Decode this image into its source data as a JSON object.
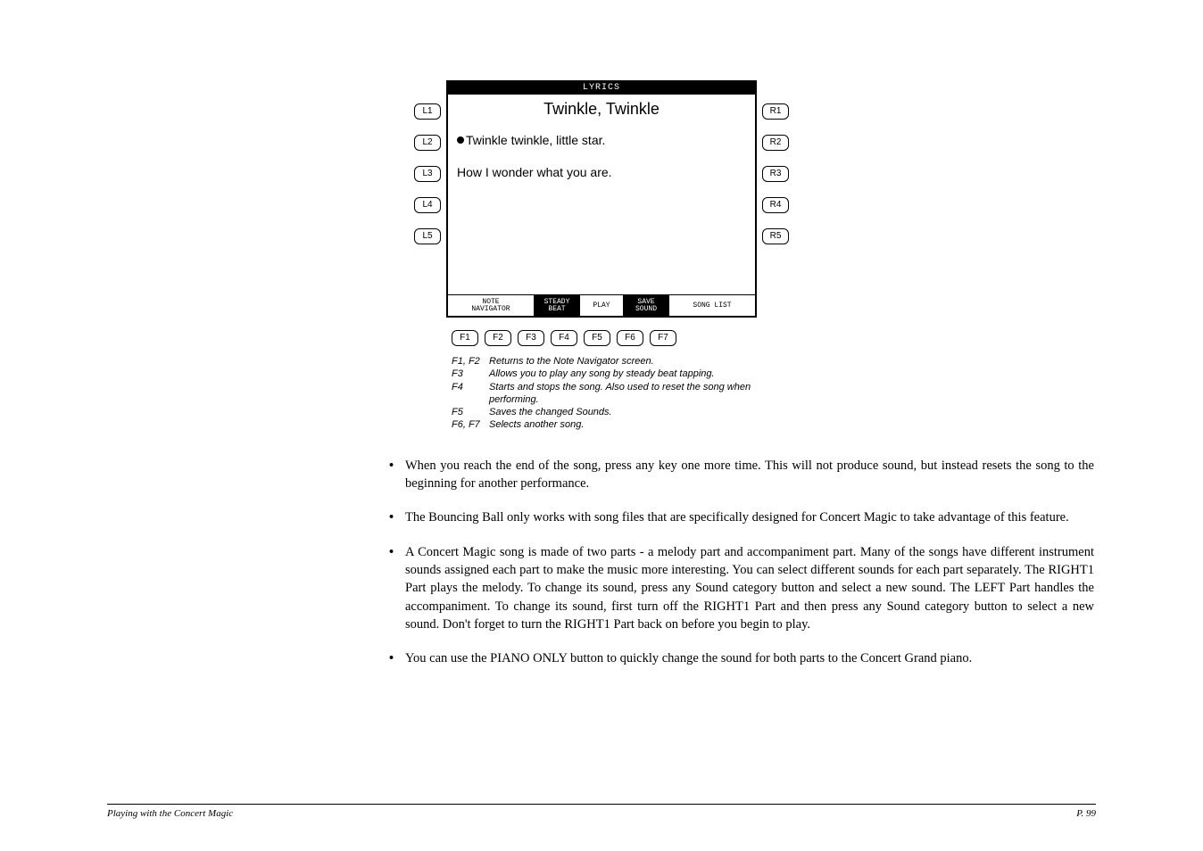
{
  "lcd": {
    "title_bar": "LYRICS",
    "song_title": "Twinkle, Twinkle",
    "line1": "Twinkle twinkle, little star.",
    "line2": "How I wonder what you are.",
    "tabs": {
      "t1": "NOTE\nNAVIGATOR",
      "t2": "STEADY\nBEAT",
      "t3": "PLAY",
      "t4": "SAVE\nSOUND",
      "t5": "SONG LIST"
    }
  },
  "left_buttons": [
    "L1",
    "L2",
    "L3",
    "L4",
    "L5"
  ],
  "right_buttons": [
    "R1",
    "R2",
    "R3",
    "R4",
    "R5"
  ],
  "f_buttons": [
    "F1",
    "F2",
    "F3",
    "F4",
    "F5",
    "F6",
    "F7"
  ],
  "legend": [
    {
      "key": "F1, F2",
      "val": "Returns to the Note Navigator screen."
    },
    {
      "key": "F3",
      "val": "Allows you to play any song by steady beat tapping."
    },
    {
      "key": "F4",
      "val": "Starts and stops the song.  Also used to reset the song when performing."
    },
    {
      "key": "F5",
      "val": "Saves the changed Sounds."
    },
    {
      "key": "F6, F7",
      "val": "Selects another song."
    }
  ],
  "bullets": [
    "When you reach the end of the song, press any key one more time.  This will not produce sound, but instead resets the song to the beginning for another performance.",
    "The Bouncing Ball only works with song files that are specifically designed for Concert Magic to take advantage of this feature.",
    "A Concert Magic song is made of two parts - a melody part and accompaniment part.  Many of the songs have different instrument sounds assigned each part to make the music more interesting.  You can select different sounds for each part separately.  The RIGHT1 Part plays the melody. To change its sound, press any Sound category button and select a new sound.  The LEFT Part handles the accompaniment.  To change its sound, first turn off the RIGHT1 Part and then press any Sound category button to select a new sound.  Don't forget to turn the RIGHT1 Part back on before you begin to play.",
    "You can use the PIANO ONLY button to quickly change the sound for both parts to the Concert Grand piano."
  ],
  "footer": {
    "left": "Playing with the Concert Magic",
    "right": "P. 99"
  }
}
